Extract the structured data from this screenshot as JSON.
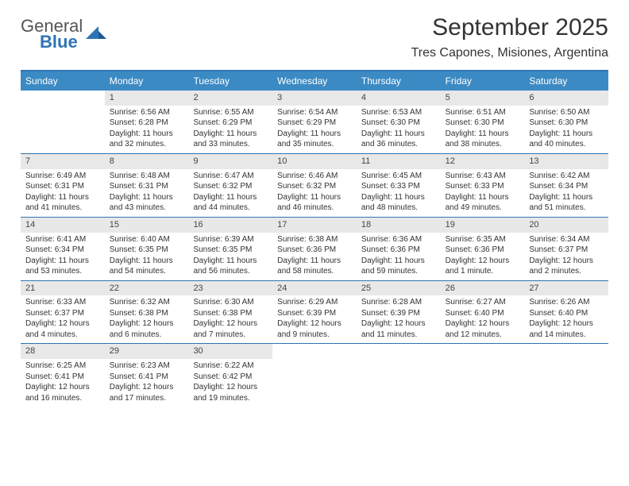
{
  "brand": {
    "line1": "General",
    "line2": "Blue"
  },
  "title": "September 2025",
  "location": "Tres Capones, Misiones, Argentina",
  "colors": {
    "header_bg": "#3b8ac4",
    "header_text": "#ffffff",
    "border": "#2f74b5",
    "daynum_bg": "#e8e8e8",
    "text": "#333333",
    "brand_blue": "#2f74b5",
    "brand_gray": "#555555",
    "page_bg": "#ffffff"
  },
  "typography": {
    "title_fontsize": 30,
    "location_fontsize": 16,
    "dayheader_fontsize": 12,
    "cell_fontsize": 10
  },
  "dayNames": [
    "Sunday",
    "Monday",
    "Tuesday",
    "Wednesday",
    "Thursday",
    "Friday",
    "Saturday"
  ],
  "weeks": [
    [
      {
        "n": "",
        "sr": "",
        "ss": "",
        "dl1": "",
        "dl2": ""
      },
      {
        "n": "1",
        "sr": "Sunrise: 6:56 AM",
        "ss": "Sunset: 6:28 PM",
        "dl1": "Daylight: 11 hours",
        "dl2": "and 32 minutes."
      },
      {
        "n": "2",
        "sr": "Sunrise: 6:55 AM",
        "ss": "Sunset: 6:29 PM",
        "dl1": "Daylight: 11 hours",
        "dl2": "and 33 minutes."
      },
      {
        "n": "3",
        "sr": "Sunrise: 6:54 AM",
        "ss": "Sunset: 6:29 PM",
        "dl1": "Daylight: 11 hours",
        "dl2": "and 35 minutes."
      },
      {
        "n": "4",
        "sr": "Sunrise: 6:53 AM",
        "ss": "Sunset: 6:30 PM",
        "dl1": "Daylight: 11 hours",
        "dl2": "and 36 minutes."
      },
      {
        "n": "5",
        "sr": "Sunrise: 6:51 AM",
        "ss": "Sunset: 6:30 PM",
        "dl1": "Daylight: 11 hours",
        "dl2": "and 38 minutes."
      },
      {
        "n": "6",
        "sr": "Sunrise: 6:50 AM",
        "ss": "Sunset: 6:30 PM",
        "dl1": "Daylight: 11 hours",
        "dl2": "and 40 minutes."
      }
    ],
    [
      {
        "n": "7",
        "sr": "Sunrise: 6:49 AM",
        "ss": "Sunset: 6:31 PM",
        "dl1": "Daylight: 11 hours",
        "dl2": "and 41 minutes."
      },
      {
        "n": "8",
        "sr": "Sunrise: 6:48 AM",
        "ss": "Sunset: 6:31 PM",
        "dl1": "Daylight: 11 hours",
        "dl2": "and 43 minutes."
      },
      {
        "n": "9",
        "sr": "Sunrise: 6:47 AM",
        "ss": "Sunset: 6:32 PM",
        "dl1": "Daylight: 11 hours",
        "dl2": "and 44 minutes."
      },
      {
        "n": "10",
        "sr": "Sunrise: 6:46 AM",
        "ss": "Sunset: 6:32 PM",
        "dl1": "Daylight: 11 hours",
        "dl2": "and 46 minutes."
      },
      {
        "n": "11",
        "sr": "Sunrise: 6:45 AM",
        "ss": "Sunset: 6:33 PM",
        "dl1": "Daylight: 11 hours",
        "dl2": "and 48 minutes."
      },
      {
        "n": "12",
        "sr": "Sunrise: 6:43 AM",
        "ss": "Sunset: 6:33 PM",
        "dl1": "Daylight: 11 hours",
        "dl2": "and 49 minutes."
      },
      {
        "n": "13",
        "sr": "Sunrise: 6:42 AM",
        "ss": "Sunset: 6:34 PM",
        "dl1": "Daylight: 11 hours",
        "dl2": "and 51 minutes."
      }
    ],
    [
      {
        "n": "14",
        "sr": "Sunrise: 6:41 AM",
        "ss": "Sunset: 6:34 PM",
        "dl1": "Daylight: 11 hours",
        "dl2": "and 53 minutes."
      },
      {
        "n": "15",
        "sr": "Sunrise: 6:40 AM",
        "ss": "Sunset: 6:35 PM",
        "dl1": "Daylight: 11 hours",
        "dl2": "and 54 minutes."
      },
      {
        "n": "16",
        "sr": "Sunrise: 6:39 AM",
        "ss": "Sunset: 6:35 PM",
        "dl1": "Daylight: 11 hours",
        "dl2": "and 56 minutes."
      },
      {
        "n": "17",
        "sr": "Sunrise: 6:38 AM",
        "ss": "Sunset: 6:36 PM",
        "dl1": "Daylight: 11 hours",
        "dl2": "and 58 minutes."
      },
      {
        "n": "18",
        "sr": "Sunrise: 6:36 AM",
        "ss": "Sunset: 6:36 PM",
        "dl1": "Daylight: 11 hours",
        "dl2": "and 59 minutes."
      },
      {
        "n": "19",
        "sr": "Sunrise: 6:35 AM",
        "ss": "Sunset: 6:36 PM",
        "dl1": "Daylight: 12 hours",
        "dl2": "and 1 minute."
      },
      {
        "n": "20",
        "sr": "Sunrise: 6:34 AM",
        "ss": "Sunset: 6:37 PM",
        "dl1": "Daylight: 12 hours",
        "dl2": "and 2 minutes."
      }
    ],
    [
      {
        "n": "21",
        "sr": "Sunrise: 6:33 AM",
        "ss": "Sunset: 6:37 PM",
        "dl1": "Daylight: 12 hours",
        "dl2": "and 4 minutes."
      },
      {
        "n": "22",
        "sr": "Sunrise: 6:32 AM",
        "ss": "Sunset: 6:38 PM",
        "dl1": "Daylight: 12 hours",
        "dl2": "and 6 minutes."
      },
      {
        "n": "23",
        "sr": "Sunrise: 6:30 AM",
        "ss": "Sunset: 6:38 PM",
        "dl1": "Daylight: 12 hours",
        "dl2": "and 7 minutes."
      },
      {
        "n": "24",
        "sr": "Sunrise: 6:29 AM",
        "ss": "Sunset: 6:39 PM",
        "dl1": "Daylight: 12 hours",
        "dl2": "and 9 minutes."
      },
      {
        "n": "25",
        "sr": "Sunrise: 6:28 AM",
        "ss": "Sunset: 6:39 PM",
        "dl1": "Daylight: 12 hours",
        "dl2": "and 11 minutes."
      },
      {
        "n": "26",
        "sr": "Sunrise: 6:27 AM",
        "ss": "Sunset: 6:40 PM",
        "dl1": "Daylight: 12 hours",
        "dl2": "and 12 minutes."
      },
      {
        "n": "27",
        "sr": "Sunrise: 6:26 AM",
        "ss": "Sunset: 6:40 PM",
        "dl1": "Daylight: 12 hours",
        "dl2": "and 14 minutes."
      }
    ],
    [
      {
        "n": "28",
        "sr": "Sunrise: 6:25 AM",
        "ss": "Sunset: 6:41 PM",
        "dl1": "Daylight: 12 hours",
        "dl2": "and 16 minutes."
      },
      {
        "n": "29",
        "sr": "Sunrise: 6:23 AM",
        "ss": "Sunset: 6:41 PM",
        "dl1": "Daylight: 12 hours",
        "dl2": "and 17 minutes."
      },
      {
        "n": "30",
        "sr": "Sunrise: 6:22 AM",
        "ss": "Sunset: 6:42 PM",
        "dl1": "Daylight: 12 hours",
        "dl2": "and 19 minutes."
      },
      {
        "n": "",
        "sr": "",
        "ss": "",
        "dl1": "",
        "dl2": ""
      },
      {
        "n": "",
        "sr": "",
        "ss": "",
        "dl1": "",
        "dl2": ""
      },
      {
        "n": "",
        "sr": "",
        "ss": "",
        "dl1": "",
        "dl2": ""
      },
      {
        "n": "",
        "sr": "",
        "ss": "",
        "dl1": "",
        "dl2": ""
      }
    ]
  ]
}
